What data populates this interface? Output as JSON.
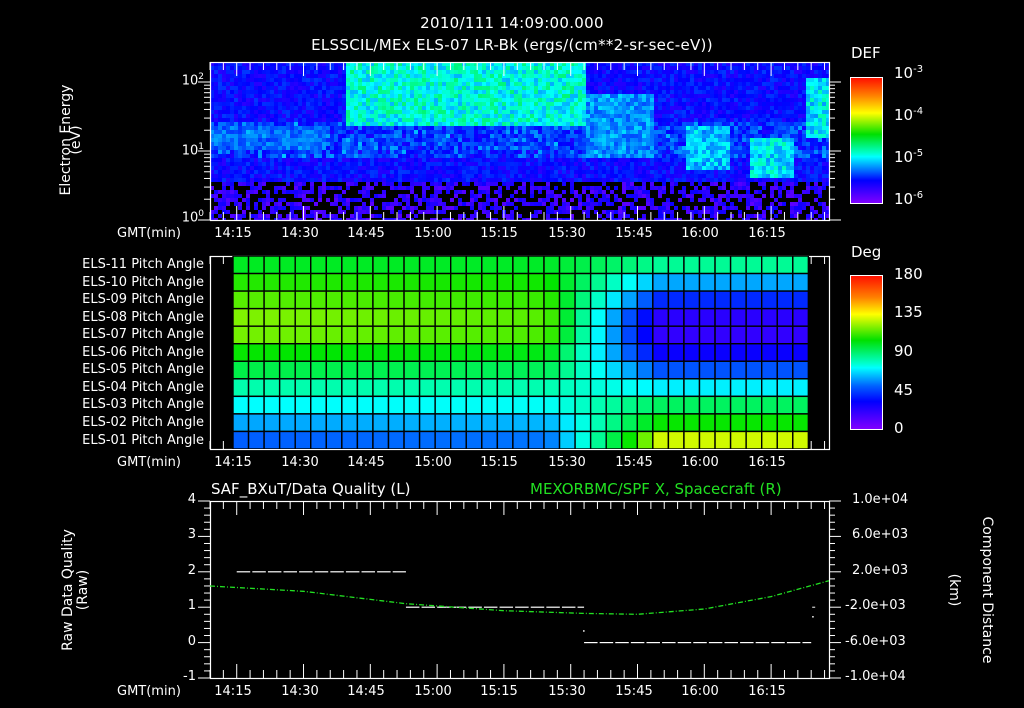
{
  "header": {
    "timestamp": "2010/111 14:09:00.000",
    "title": "ELSSCIL/MEx ELS-07 LR-Bk  (ergs/(cm**2-sr-sec-eV))"
  },
  "time_axis": {
    "label": "GMT(min)",
    "ticks": [
      "14:15",
      "14:30",
      "14:45",
      "15:00",
      "15:15",
      "15:30",
      "15:45",
      "16:00",
      "16:15"
    ]
  },
  "panel_spectrogram": {
    "ylabel_line1": "Electron Energy",
    "ylabel_line2": "(eV)",
    "y_ticks": [
      {
        "base": "10",
        "exp": "2"
      },
      {
        "base": "10",
        "exp": "1"
      },
      {
        "base": "10",
        "exp": "0"
      }
    ],
    "colorbar": {
      "title": "DEF",
      "ticks": [
        {
          "base": "10",
          "exp": "-3"
        },
        {
          "base": "10",
          "exp": "-4"
        },
        {
          "base": "10",
          "exp": "-5"
        },
        {
          "base": "10",
          "exp": "-6"
        }
      ]
    }
  },
  "panel_pitch": {
    "rows": [
      "ELS-11 Pitch Angle",
      "ELS-10 Pitch Angle",
      "ELS-09 Pitch Angle",
      "ELS-08 Pitch Angle",
      "ELS-07 Pitch Angle",
      "ELS-06 Pitch Angle",
      "ELS-05 Pitch Angle",
      "ELS-04 Pitch Angle",
      "ELS-03 Pitch Angle",
      "ELS-02 Pitch Angle",
      "ELS-01 Pitch Angle"
    ],
    "colorbar": {
      "title": "Deg",
      "ticks": [
        "180",
        "135",
        "90",
        "45",
        "0"
      ]
    }
  },
  "panel_quality": {
    "title_left": "SAF_BXuT/Data Quality (L)",
    "title_right": "MEXORBMC/SPF X, Spacecraft (R)",
    "ylabel_left_line1": "Raw Data Quality",
    "ylabel_left_line2": "(Raw)",
    "ylabel_right_line1": "Component Distance",
    "ylabel_right_line2": "(km)",
    "y_left_ticks": [
      "4",
      "3",
      "2",
      "1",
      "0",
      "-1"
    ],
    "y_right_ticks": [
      "1.0e+04",
      "6.0e+03",
      "2.0e+03",
      "-2.0e+03",
      "-6.0e+03",
      "-1.0e+04"
    ]
  },
  "colors": {
    "background": "#000000",
    "axes": "#ffffff",
    "spacecraft_line": "#22e022",
    "quality_line": "#ffffff"
  },
  "chart_data": [
    {
      "type": "heatmap",
      "title": "ELSSCIL/MEx ELS-07 LR-Bk (ergs/(cm**2-sr-sec-eV))",
      "subtitle": "2010/111 14:09:00.000",
      "xlabel": "GMT(min)",
      "ylabel": "Electron Energy (eV)",
      "x_ticks": [
        "14:15",
        "14:30",
        "14:45",
        "15:00",
        "15:15",
        "15:30",
        "15:45",
        "16:00",
        "16:15"
      ],
      "xlim": [
        "14:09",
        "16:28"
      ],
      "y_scale": "log",
      "ylim": [
        1,
        150
      ],
      "colorbar": {
        "label": "DEF",
        "scale": "log",
        "range": [
          1e-06,
          0.001
        ]
      },
      "features": [
        {
          "time_range": [
            "14:09",
            "14:35"
          ],
          "energy_eV": [
            10,
            20
          ],
          "level": "~1e-5"
        },
        {
          "time_range": [
            "14:39",
            "15:33"
          ],
          "energy_eV": [
            20,
            150
          ],
          "level": "~5e-5 to 1e-4"
        },
        {
          "time_range": [
            "15:33",
            "15:48"
          ],
          "energy_eV": [
            8,
            60
          ],
          "level": "~2e-5"
        },
        {
          "time_range": [
            "15:55",
            "16:05"
          ],
          "energy_eV": [
            5,
            20
          ],
          "level": "~3e-5"
        },
        {
          "time_range": [
            "16:10",
            "16:20"
          ],
          "energy_eV": [
            4,
            15
          ],
          "level": "~5e-5"
        },
        {
          "time_range": [
            "16:22",
            "16:28"
          ],
          "energy_eV": [
            15,
            100
          ],
          "level": "~5e-5"
        }
      ]
    },
    {
      "type": "heatmap",
      "title": "Pitch Angle per ELS anode",
      "xlabel": "GMT(min)",
      "categories": [
        "ELS-11",
        "ELS-10",
        "ELS-09",
        "ELS-08",
        "ELS-07",
        "ELS-06",
        "ELS-05",
        "ELS-04",
        "ELS-03",
        "ELS-02",
        "ELS-01"
      ],
      "x_ticks": [
        "14:15",
        "14:30",
        "14:45",
        "15:00",
        "15:15",
        "15:30",
        "15:45",
        "16:00",
        "16:15"
      ],
      "colorbar": {
        "label": "Deg",
        "range": [
          0,
          180
        ],
        "ticks": [
          0,
          45,
          90,
          135,
          180
        ]
      },
      "series": [
        {
          "name": "ELS-11",
          "start_deg": 100,
          "end_deg": 85
        },
        {
          "name": "ELS-10",
          "start_deg": 108,
          "end_deg": 60
        },
        {
          "name": "ELS-09",
          "start_deg": 113,
          "end_deg": 40
        },
        {
          "name": "ELS-08",
          "start_deg": 117,
          "end_deg": 22
        },
        {
          "name": "ELS-07",
          "start_deg": 116,
          "end_deg": 20
        },
        {
          "name": "ELS-06",
          "start_deg": 105,
          "end_deg": 30
        },
        {
          "name": "ELS-05",
          "start_deg": 95,
          "end_deg": 48
        },
        {
          "name": "ELS-04",
          "start_deg": 82,
          "end_deg": 70
        },
        {
          "name": "ELS-03",
          "start_deg": 72,
          "end_deg": 92
        },
        {
          "name": "ELS-02",
          "start_deg": 60,
          "end_deg": 105
        },
        {
          "name": "ELS-01",
          "start_deg": 50,
          "end_deg": 125
        }
      ]
    },
    {
      "type": "line",
      "title_left": "SAF_BXuT/Data Quality (L)",
      "title_right": "MEXORBMC/SPF X, Spacecraft (R)",
      "xlabel": "GMT(min)",
      "ylabel": "Raw Data Quality (Raw)",
      "ylabel_right": "Component Distance (km)",
      "ylim": [
        -1,
        4
      ],
      "ylim_right": [
        -10000,
        10000
      ],
      "series": [
        {
          "name": "Data Quality",
          "axis": "left",
          "x": [
            "14:15",
            "14:53",
            "14:53",
            "15:33",
            "15:33",
            "16:24"
          ],
          "values": [
            2,
            2,
            1,
            1,
            0,
            0
          ]
        },
        {
          "name": "SPF X Spacecraft",
          "axis": "right",
          "x": [
            "14:09",
            "14:30",
            "14:53",
            "15:15",
            "15:33",
            "15:45",
            "16:00",
            "16:15",
            "16:28"
          ],
          "values": [
            400,
            -200,
            -1600,
            -2400,
            -2700,
            -2800,
            -2200,
            -800,
            1000
          ]
        }
      ]
    }
  ]
}
